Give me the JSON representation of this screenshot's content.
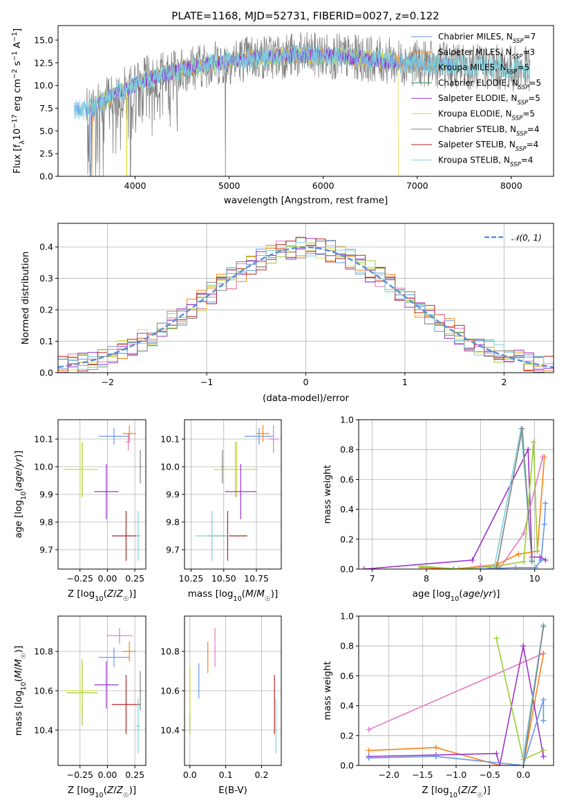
{
  "title": "PLATE=1168, MJD=52731, FIBERID=0027, z=0.122",
  "colors": {
    "Chabrier MILES": "#6495ed",
    "Salpeter MILES": "#ff7f0e",
    "Kroupa MILES": "#f08c2c",
    "Chabrier ELODIE": "#2e8b57",
    "Salpeter ELODIE": "#9932cc",
    "Kroupa ELODIE": "#dede44",
    "Chabrier STELIB": "#808080",
    "Salpeter STELIB": "#b22222",
    "Kroupa STELIB": "#7fd0dc",
    "pink": "#e377c2",
    "lime": "#9acd32",
    "normal": "#5b8fd6"
  },
  "legend1": [
    {
      "name": "Chabrier MILES",
      "label": "Chabrier MILES, N",
      "sub": "SSP",
      "n": "=7"
    },
    {
      "name": "Salpeter MILES",
      "label": "Salpeter MILES, N",
      "sub": "SSP",
      "n": "=3"
    },
    {
      "name": "Kroupa MILES",
      "label": "Kroupa MILES, N",
      "sub": "SSP",
      "n": "=5"
    },
    {
      "name": "Chabrier ELODIE",
      "label": "Chabrier ELODIE, N",
      "sub": "SSP",
      "n": "=5"
    },
    {
      "name": "Salpeter ELODIE",
      "label": "Salpeter ELODIE, N",
      "sub": "SSP",
      "n": "=5"
    },
    {
      "name": "Kroupa ELODIE",
      "label": "Kroupa ELODIE, N",
      "sub": "SSP",
      "n": "=5"
    },
    {
      "name": "Chabrier STELIB",
      "label": "Chabrier STELIB, N",
      "sub": "SSP",
      "n": "=4"
    },
    {
      "name": "Salpeter STELIB",
      "label": "Salpeter STELIB, N",
      "sub": "SSP",
      "n": "=4"
    },
    {
      "name": "Kroupa STELIB",
      "label": "Kroupa STELIB, N",
      "sub": "SSP",
      "n": "=4"
    }
  ],
  "legend2": "𝒩(0, 1)",
  "chart_data": [
    {
      "type": "line",
      "panel": "spectrum",
      "xlabel": "wavelength [Angstrom, rest frame]",
      "ylabel": "Flux [f_λ 10^-17 erg cm^-2 s^-1 A^-1]",
      "xlim": [
        3180,
        8450
      ],
      "ylim": [
        0,
        16.6
      ],
      "xticks": [
        "4000",
        "5000",
        "6000",
        "7000",
        "8000"
      ],
      "yticks": [
        "0.0",
        "2.5",
        "5.0",
        "7.5",
        "10.0",
        "12.5",
        "15.0"
      ],
      "grid": false,
      "legend": "upper right",
      "continuum": [
        [
          3350,
          7.4
        ],
        [
          3500,
          7.2
        ],
        [
          3700,
          8.6
        ],
        [
          3900,
          9.6
        ],
        [
          4100,
          10.6
        ],
        [
          4300,
          11.2
        ],
        [
          4500,
          11.8
        ],
        [
          4800,
          12.4
        ],
        [
          5200,
          13.0
        ],
        [
          5600,
          13.3
        ],
        [
          6000,
          13.3
        ],
        [
          6400,
          13.0
        ],
        [
          6800,
          12.6
        ],
        [
          7200,
          12.3
        ],
        [
          7600,
          12.1
        ],
        [
          8000,
          11.9
        ],
        [
          8200,
          11.8
        ]
      ]
    },
    {
      "type": "line",
      "panel": "residual histogram",
      "xlabel": "(data-model)/error",
      "ylabel": "Normed distribution",
      "xlim": [
        -2.5,
        2.5
      ],
      "ylim": [
        0,
        0.475
      ],
      "xticks": [
        "−2",
        "−1",
        "0",
        "1",
        "2"
      ],
      "yticks": [
        "0.0",
        "0.1",
        "0.2",
        "0.3",
        "0.4"
      ],
      "grid": true,
      "legend": "upper right",
      "normal": {
        "mean": 0,
        "sigma": 1
      }
    },
    {
      "type": "scatter",
      "panel": "age vs Z",
      "xlabel": "Z [log10(Z/Z☉)]",
      "ylabel": "age [log10(age/yr)]",
      "xlim": [
        -0.45,
        0.35
      ],
      "ylim": [
        9.63,
        10.17
      ],
      "xticks": [
        "−0.25",
        "0.00",
        "0.25"
      ],
      "yticks": [
        "9.7",
        "9.8",
        "9.9",
        "10.0",
        "10.1"
      ],
      "points": [
        {
          "c": "Chabrier MILES",
          "x": 0.06,
          "xe": 0.14,
          "y": 10.11,
          "ye": 0.03
        },
        {
          "c": "Salpeter MILES",
          "x": 0.2,
          "xe": 0.06,
          "y": 10.12,
          "ye": 0.03
        },
        {
          "c": "pink",
          "x": 0.19,
          "xe": 0.02,
          "y": 10.09,
          "ye": 0.03
        },
        {
          "c": "lime",
          "x": -0.23,
          "xe": 0.14,
          "y": 9.99,
          "ye": 0.1
        },
        {
          "c": "Kroupa ELODIE",
          "x": -0.25,
          "xe": 0.15,
          "y": 9.99,
          "ye": 0.1
        },
        {
          "c": "Salpeter ELODIE",
          "x": -0.01,
          "xe": 0.11,
          "y": 9.91,
          "ye": 0.1
        },
        {
          "c": "Salpeter STELIB",
          "x": 0.17,
          "xe": 0.13,
          "y": 9.75,
          "ye": 0.09
        },
        {
          "c": "Kroupa STELIB",
          "x": 0.28,
          "xe": 0.02,
          "y": 9.75,
          "ye": 0.09
        },
        {
          "c": "Chabrier STELIB",
          "x": 0.3,
          "xe": 0.01,
          "y": 10.0,
          "ye": 0.06
        }
      ]
    },
    {
      "type": "scatter",
      "panel": "age vs mass",
      "xlabel": "mass [log10(M/M☉)]",
      "ylabel": "",
      "xlim": [
        10.2,
        10.94
      ],
      "ylim": [
        9.63,
        10.17
      ],
      "xticks": [
        "10.25",
        "10.50",
        "10.75"
      ],
      "yticks": [
        "9.7",
        "9.8",
        "9.9",
        "10.0",
        "10.1"
      ],
      "points": [
        {
          "c": "Chabrier MILES",
          "x": 10.77,
          "xe": 0.11,
          "y": 10.11,
          "ye": 0.03
        },
        {
          "c": "Salpeter MILES",
          "x": 10.8,
          "xe": 0.05,
          "y": 10.12,
          "ye": 0.03
        },
        {
          "c": "pink",
          "x": 10.88,
          "xe": 0.04,
          "y": 10.1,
          "ye": 0.05
        },
        {
          "c": "lime",
          "x": 10.59,
          "xe": 0.16,
          "y": 9.99,
          "ye": 0.1
        },
        {
          "c": "Kroupa ELODIE",
          "x": 10.6,
          "xe": 0.16,
          "y": 9.99,
          "ye": 0.1
        },
        {
          "c": "Salpeter ELODIE",
          "x": 10.63,
          "xe": 0.12,
          "y": 9.91,
          "ye": 0.1
        },
        {
          "c": "Salpeter STELIB",
          "x": 10.53,
          "xe": 0.15,
          "y": 9.75,
          "ye": 0.09
        },
        {
          "c": "Kroupa STELIB",
          "x": 10.41,
          "xe": 0.13,
          "y": 9.75,
          "ye": 0.09
        },
        {
          "c": "Chabrier STELIB",
          "x": 10.49,
          "xe": 0.01,
          "y": 10.0,
          "ye": 0.06
        }
      ]
    },
    {
      "type": "line",
      "panel": "mass weight vs age",
      "xlabel": "age [log10(age/yr)]",
      "ylabel": "mass weight",
      "xlim": [
        6.75,
        10.35
      ],
      "ylim": [
        0,
        1.0
      ],
      "xticks": [
        "7",
        "8",
        "9",
        "10"
      ],
      "yticks": [
        "0.0",
        "0.2",
        "0.4",
        "0.6",
        "0.8",
        "1.0"
      ],
      "grid": true,
      "series": [
        {
          "c": "Salpeter ELODIE",
          "x": [
            6.85,
            8.85,
            9.88,
            9.95,
            10.1,
            10.2
          ],
          "y": [
            0.0,
            0.06,
            0.8,
            0.08,
            0.08,
            0.06
          ]
        },
        {
          "c": "Salpeter MILES",
          "x": [
            7.9,
            8.5,
            9.3,
            9.7,
            10.05,
            10.18
          ],
          "y": [
            0.01,
            0.0,
            0.03,
            0.1,
            0.12,
            0.75
          ]
        },
        {
          "c": "pink",
          "x": [
            9.0,
            9.35,
            9.8,
            10.15
          ],
          "y": [
            0.02,
            0.0,
            0.24,
            0.75
          ]
        },
        {
          "c": "Chabrier MILES",
          "x": [
            8.5,
            9.0,
            9.65,
            10.02,
            10.12,
            10.18,
            10.2
          ],
          "y": [
            0.0,
            0.0,
            0.01,
            0.01,
            0.06,
            0.3,
            0.44
          ]
        },
        {
          "c": "lime",
          "x": [
            7.9,
            8.6,
            9.3,
            9.8,
            9.98,
            10.05
          ],
          "y": [
            0.02,
            0.0,
            0.02,
            0.05,
            0.85,
            0.12
          ]
        },
        {
          "c": "Kroupa STELIB",
          "x": [
            9.25,
            9.75,
            9.95
          ],
          "y": [
            0.0,
            0.94,
            0.06
          ]
        },
        {
          "c": "Chabrier STELIB",
          "x": [
            9.3,
            9.77,
            9.95
          ],
          "y": [
            0.01,
            0.94,
            0.05
          ]
        }
      ]
    },
    {
      "type": "scatter",
      "panel": "mass vs Z",
      "xlabel": "Z [log10(Z/Z☉)]",
      "ylabel": "mass [log10(M/M☉)]",
      "xlim": [
        -0.45,
        0.35
      ],
      "ylim": [
        10.22,
        10.98
      ],
      "xticks": [
        "−0.25",
        "0.00",
        "0.25"
      ],
      "yticks": [
        "10.4",
        "10.6",
        "10.8"
      ],
      "points": [
        {
          "c": "pink",
          "x": 0.11,
          "xe": 0.12,
          "y": 10.88,
          "ye": 0.04
        },
        {
          "c": "Salpeter MILES",
          "x": 0.2,
          "xe": 0.06,
          "y": 10.8,
          "ye": 0.05
        },
        {
          "c": "Chabrier MILES",
          "x": 0.06,
          "xe": 0.14,
          "y": 10.77,
          "ye": 0.05
        },
        {
          "c": "lime",
          "x": -0.23,
          "xe": 0.14,
          "y": 10.59,
          "ye": 0.17
        },
        {
          "c": "Kroupa ELODIE",
          "x": -0.25,
          "xe": 0.15,
          "y": 10.6,
          "ye": 0.12
        },
        {
          "c": "Salpeter ELODIE",
          "x": -0.01,
          "xe": 0.11,
          "y": 10.63,
          "ye": 0.12
        },
        {
          "c": "Salpeter STELIB",
          "x": 0.17,
          "xe": 0.13,
          "y": 10.53,
          "ye": 0.15
        },
        {
          "c": "Kroupa STELIB",
          "x": 0.28,
          "xe": 0.02,
          "y": 10.42,
          "ye": 0.14
        },
        {
          "c": "Chabrier STELIB",
          "x": 0.3,
          "xe": 0.01,
          "y": 10.6,
          "ye": 0.1
        }
      ]
    },
    {
      "type": "scatter",
      "panel": "mass vs E(B-V)",
      "xlabel": "E(B-V)",
      "ylabel": "",
      "xlim": [
        -0.015,
        0.255
      ],
      "ylim": [
        10.22,
        10.98
      ],
      "xticks": [
        "0.0",
        "0.1",
        "0.2"
      ],
      "yticks": [
        "10.4",
        "10.6",
        "10.8"
      ],
      "points": [
        {
          "c": "lime",
          "x": 0.0,
          "xe": 0,
          "y": 10.55,
          "ye": 0.17
        },
        {
          "c": "Kroupa ELODIE",
          "x": 0.0,
          "xe": 0,
          "y": 10.6,
          "ye": 0.12
        },
        {
          "c": "Chabrier MILES",
          "x": 0.025,
          "xe": 0,
          "y": 10.65,
          "ye": 0.09
        },
        {
          "c": "Salpeter MILES",
          "x": 0.05,
          "xe": 0,
          "y": 10.77,
          "ye": 0.08
        },
        {
          "c": "pink",
          "x": 0.07,
          "xe": 0,
          "y": 10.82,
          "ye": 0.1
        },
        {
          "c": "Salpeter STELIB",
          "x": 0.236,
          "xe": 0,
          "y": 10.53,
          "ye": 0.15
        },
        {
          "c": "Kroupa STELIB",
          "x": 0.24,
          "xe": 0,
          "y": 10.42,
          "ye": 0.14
        }
      ]
    },
    {
      "type": "line",
      "panel": "mass weight vs Z",
      "xlabel": "Z [log10(Z/Z☉)]",
      "ylabel": "mass weight",
      "xlim": [
        -2.45,
        0.45
      ],
      "ylim": [
        0,
        1.0
      ],
      "xticks": [
        "−2.0",
        "−1.5",
        "−1.0",
        "−0.5",
        "0.0"
      ],
      "yticks": [
        "0.0",
        "0.2",
        "0.4",
        "0.6",
        "0.8",
        "1.0"
      ],
      "grid": true,
      "series": [
        {
          "c": "pink",
          "x": [
            -2.3,
            0.3
          ],
          "y": [
            0.24,
            0.75
          ]
        },
        {
          "c": "Salpeter MILES",
          "x": [
            -2.3,
            -1.3,
            -0.35,
            0.0,
            0.3
          ],
          "y": [
            0.1,
            0.12,
            0.0,
            0.0,
            0.75
          ]
        },
        {
          "c": "Salpeter ELODIE",
          "x": [
            -2.3,
            -1.3,
            -0.4,
            -0.35,
            0.0,
            0.3
          ],
          "y": [
            0.06,
            0.07,
            0.08,
            0.0,
            0.8,
            0.06
          ]
        },
        {
          "c": "Chabrier MILES",
          "x": [
            -2.3,
            -1.3,
            0.0,
            0.3,
            0.3
          ],
          "y": [
            0.05,
            0.06,
            0.0,
            0.44,
            0.3
          ]
        },
        {
          "c": "lime",
          "x": [
            -0.4,
            0.0,
            0.3
          ],
          "y": [
            0.85,
            0.04,
            0.1
          ]
        },
        {
          "c": "Kroupa STELIB",
          "x": [
            0.0,
            0.3
          ],
          "y": [
            0.06,
            0.94
          ]
        },
        {
          "c": "Chabrier STELIB",
          "x": [
            0.0,
            0.3
          ],
          "y": [
            0.0,
            0.93
          ]
        }
      ]
    }
  ]
}
